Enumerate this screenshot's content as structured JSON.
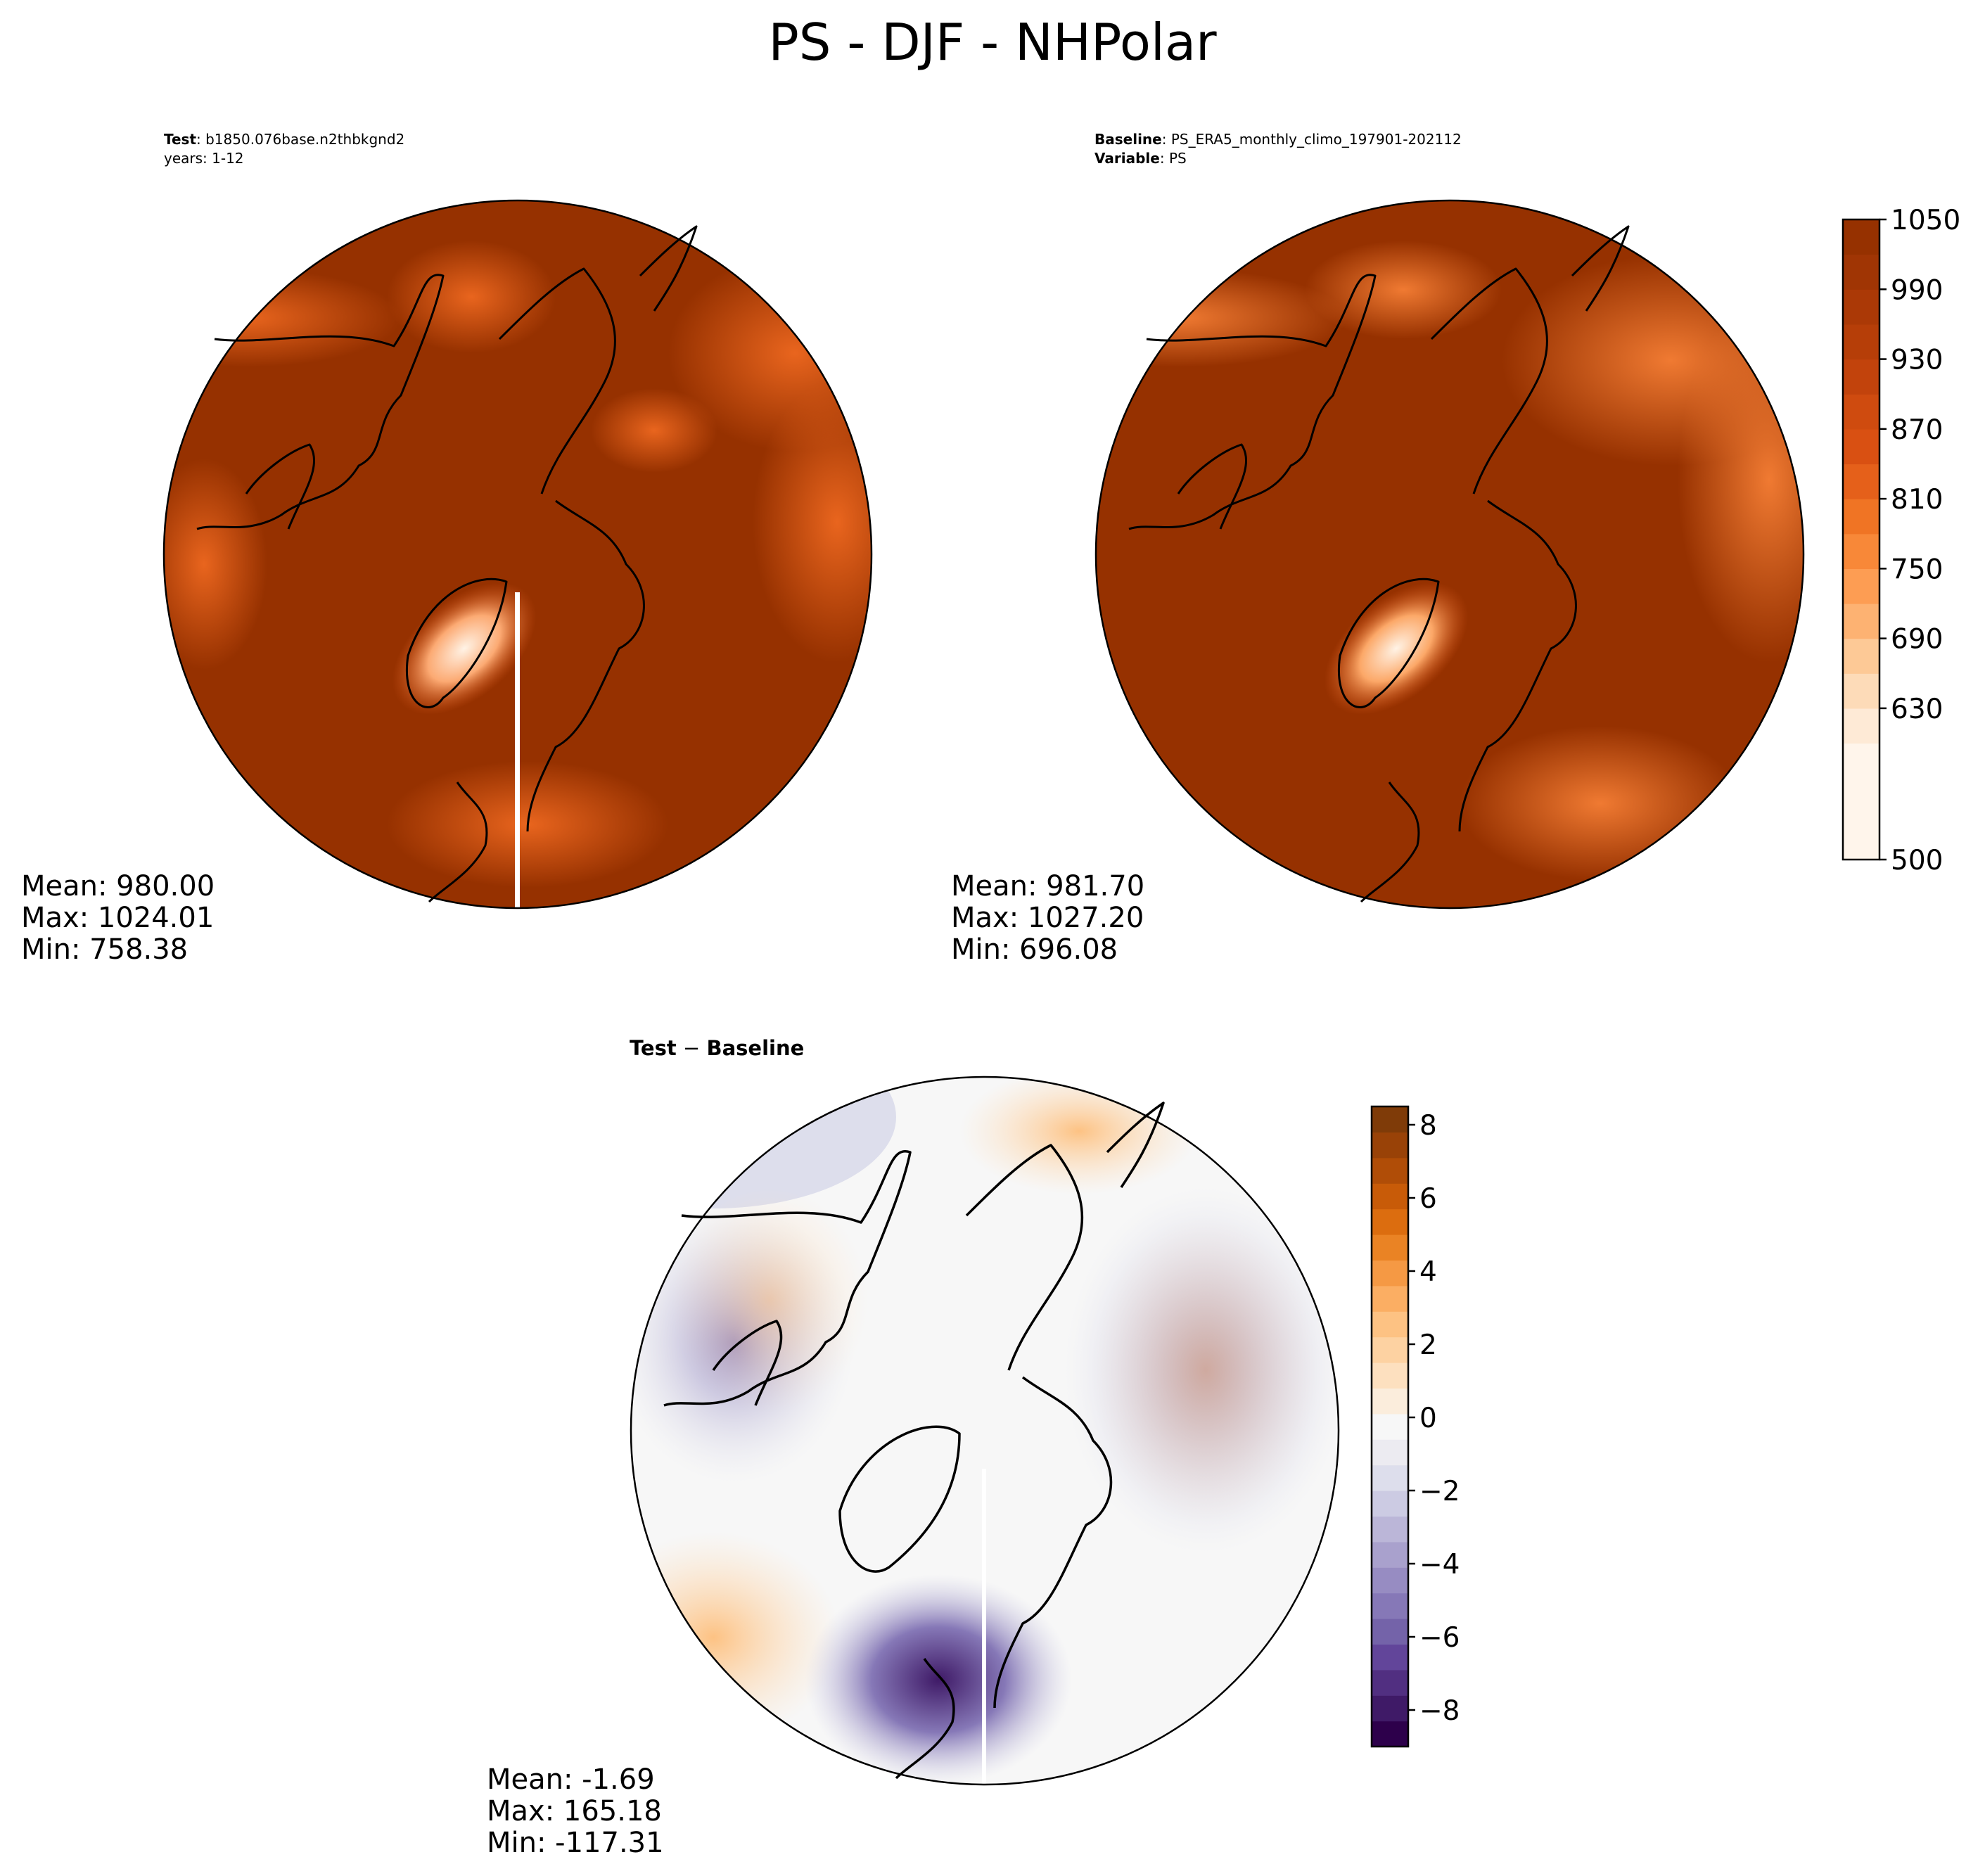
{
  "page": {
    "title": "PS - DJF - NHPolar"
  },
  "test_panel": {
    "header_label_bold": "Test",
    "header_label_text": ": b1850.076base.n2thbkgnd2",
    "header_line2": "years: 1-12",
    "mean": "Mean: 980.00",
    "max": "Max: 1024.01",
    "min": "Min: 758.38"
  },
  "baseline_panel": {
    "header_label_bold": "Baseline",
    "header_label_text": ": PS_ERA5_monthly_climo_197901-202112",
    "header2_label_bold": "Variable",
    "header2_label_text": ": PS",
    "mean": "Mean: 981.70",
    "max": "Max: 1027.20",
    "min": "Min: 696.08"
  },
  "diff_panel": {
    "title_bold_a": "Test",
    "title_sep": " − ",
    "title_bold_b": "Baseline",
    "mean": "Mean: -1.69",
    "max": "Max: 165.18",
    "min": "Min: -117.31"
  },
  "colors": {
    "field_high": "#963100",
    "field_mid": "#d4571a",
    "field_low": "#fff3e6",
    "diff_pos": "#7f3b08",
    "diff_zero": "#f7f7f7",
    "diff_neg": "#2d004b",
    "coastline": "#000000"
  },
  "chart_data": [
    {
      "type": "heatmap",
      "panel": "test",
      "projection": "north polar stereographic",
      "colormap": "Oranges",
      "clim": [
        500,
        1050
      ],
      "mean": 980.0,
      "max": 1024.01,
      "min": 758.38
    },
    {
      "type": "heatmap",
      "panel": "baseline",
      "projection": "north polar stereographic",
      "colormap": "Oranges",
      "clim": [
        500,
        1050
      ],
      "mean": 981.7,
      "max": 1027.2,
      "min": 696.08
    },
    {
      "type": "heatmap",
      "panel": "difference",
      "projection": "north polar stereographic",
      "colormap": "PuOr_r",
      "clim": [
        -9,
        8.5
      ],
      "mean": -1.69,
      "max": 165.18,
      "min": -117.31
    }
  ],
  "colorbar_top": {
    "ticks": [
      "1050",
      "990",
      "930",
      "870",
      "810",
      "750",
      "690",
      "630",
      "500"
    ],
    "tick_values": [
      1050,
      990,
      930,
      870,
      810,
      750,
      690,
      630,
      500
    ],
    "levels": [
      500,
      600,
      630,
      660,
      690,
      720,
      750,
      780,
      810,
      840,
      870,
      900,
      930,
      960,
      990,
      1020,
      1050
    ],
    "level_colors": [
      "#fff5eb",
      "#feead6",
      "#fddbb8",
      "#fdc996",
      "#fdb272",
      "#fd9d53",
      "#f88838",
      "#f07424",
      "#e5601a",
      "#d95012",
      "#cf4b0f",
      "#c2430c",
      "#b63e08",
      "#ab3906",
      "#a03504",
      "#963100"
    ]
  },
  "colorbar_bottom": {
    "ticks": [
      "8",
      "6",
      "4",
      "2",
      "0",
      "−2",
      "−4",
      "−6",
      "−8"
    ],
    "tick_values": [
      8,
      6,
      4,
      2,
      0,
      -2,
      -4,
      -6,
      -8
    ],
    "range": [
      -9,
      8.5
    ],
    "level_colors": [
      "#2d004b",
      "#3f1a67",
      "#512f81",
      "#62459a",
      "#7463a9",
      "#8678b7",
      "#978cc2",
      "#a9a1cd",
      "#bbb6d8",
      "#cccbe3",
      "#dddeec",
      "#ecebf1",
      "#f7f7f7",
      "#fbeddc",
      "#fde0bf",
      "#fdd2a2",
      "#fdc283",
      "#fbae63",
      "#f59944",
      "#ea8324",
      "#dc6d0f",
      "#c85b08",
      "#b04d07",
      "#994207",
      "#7f3b08"
    ]
  }
}
